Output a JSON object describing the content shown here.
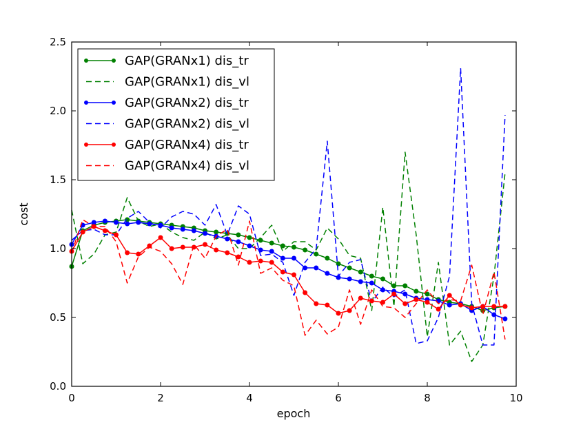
{
  "chart_data": {
    "type": "line",
    "title": "",
    "xlabel": "epoch",
    "ylabel": "cost",
    "xlim": [
      0,
      10
    ],
    "ylim": [
      0.0,
      2.5
    ],
    "xticks": [
      "0",
      "2",
      "4",
      "6",
      "8",
      "10"
    ],
    "yticks": [
      "0.0",
      "0.5",
      "1.0",
      "1.5",
      "2.0",
      "2.5"
    ],
    "grid": false,
    "legend_position": "top-left",
    "x": [
      0,
      0.25,
      0.5,
      0.75,
      1.0,
      1.25,
      1.5,
      1.75,
      2.0,
      2.25,
      2.5,
      2.75,
      3.0,
      3.25,
      3.5,
      3.75,
      4.0,
      4.25,
      4.5,
      4.75,
      5.0,
      5.25,
      5.5,
      5.75,
      6.0,
      6.25,
      6.5,
      6.75,
      7.0,
      7.25,
      7.5,
      7.75,
      8.0,
      8.25,
      8.5,
      8.75,
      9.0,
      9.25,
      9.5,
      9.75
    ],
    "series": [
      {
        "name": "GAP(GRANx1) dis_tr",
        "color": "#008000",
        "style": "solid-marker",
        "values": [
          0.87,
          1.13,
          1.17,
          1.19,
          1.2,
          1.21,
          1.2,
          1.19,
          1.18,
          1.17,
          1.16,
          1.15,
          1.13,
          1.12,
          1.11,
          1.1,
          1.08,
          1.06,
          1.04,
          1.02,
          1.01,
          0.99,
          0.96,
          0.93,
          0.89,
          0.86,
          0.83,
          0.8,
          0.78,
          0.73,
          0.73,
          0.69,
          0.67,
          0.63,
          0.61,
          0.6,
          0.58,
          0.55,
          0.57,
          0.58
        ]
      },
      {
        "name": "GAP(GRANx1) dis_vl",
        "color": "#008000",
        "style": "dashed",
        "values": [
          1.28,
          0.89,
          0.96,
          1.1,
          1.12,
          1.37,
          1.2,
          1.16,
          1.18,
          1.12,
          1.08,
          1.06,
          1.12,
          1.07,
          1.1,
          1.0,
          1.0,
          1.08,
          1.17,
          0.98,
          1.05,
          1.05,
          0.99,
          1.15,
          1.07,
          0.95,
          0.93,
          0.55,
          1.3,
          0.58,
          1.7,
          1.1,
          0.36,
          0.9,
          0.3,
          0.4,
          0.18,
          0.3,
          0.8,
          1.55
        ]
      },
      {
        "name": "GAP(GRANx2) dis_tr",
        "color": "#0000ff",
        "style": "solid-marker",
        "values": [
          1.03,
          1.17,
          1.19,
          1.2,
          1.19,
          1.18,
          1.19,
          1.18,
          1.17,
          1.15,
          1.14,
          1.13,
          1.11,
          1.09,
          1.07,
          1.05,
          1.02,
          0.99,
          0.98,
          0.93,
          0.93,
          0.86,
          0.86,
          0.82,
          0.79,
          0.78,
          0.76,
          0.75,
          0.7,
          0.69,
          0.67,
          0.64,
          0.63,
          0.62,
          0.59,
          0.6,
          0.55,
          0.58,
          0.52,
          0.49
        ]
      },
      {
        "name": "GAP(GRANx2) dis_vl",
        "color": "#0000ff",
        "style": "dashed",
        "values": [
          1.06,
          1.13,
          1.14,
          1.1,
          1.1,
          1.22,
          1.27,
          1.19,
          1.15,
          1.23,
          1.27,
          1.25,
          1.17,
          1.32,
          1.1,
          1.31,
          1.25,
          0.95,
          0.96,
          0.9,
          0.66,
          0.9,
          1.0,
          1.78,
          0.8,
          0.9,
          0.92,
          0.61,
          0.72,
          0.65,
          0.7,
          0.31,
          0.33,
          0.5,
          0.8,
          2.31,
          0.6,
          0.3,
          0.3,
          1.97
        ]
      },
      {
        "name": "GAP(GRANx4) dis_tr",
        "color": "#ff0000",
        "style": "solid-marker",
        "values": [
          0.98,
          1.12,
          1.16,
          1.13,
          1.1,
          0.97,
          0.96,
          1.02,
          1.08,
          1.0,
          1.01,
          1.01,
          1.03,
          0.99,
          0.97,
          0.94,
          0.9,
          0.91,
          0.9,
          0.83,
          0.81,
          0.68,
          0.6,
          0.59,
          0.53,
          0.55,
          0.64,
          0.62,
          0.61,
          0.67,
          0.6,
          0.63,
          0.61,
          0.56,
          0.66,
          0.59,
          0.57,
          0.58,
          0.58,
          0.58
        ]
      },
      {
        "name": "GAP(GRANx4) dis_vl",
        "color": "#ff0000",
        "style": "dashed",
        "values": [
          0.97,
          1.21,
          1.16,
          1.16,
          1.05,
          0.75,
          0.94,
          1.01,
          0.98,
          0.89,
          0.74,
          1.03,
          0.93,
          1.09,
          1.14,
          0.88,
          1.2,
          0.82,
          0.86,
          0.77,
          0.73,
          0.37,
          0.48,
          0.38,
          0.43,
          0.7,
          0.45,
          0.7,
          0.58,
          0.57,
          0.5,
          0.6,
          0.7,
          0.6,
          0.63,
          0.62,
          0.88,
          0.52,
          0.83,
          0.34
        ]
      }
    ]
  }
}
